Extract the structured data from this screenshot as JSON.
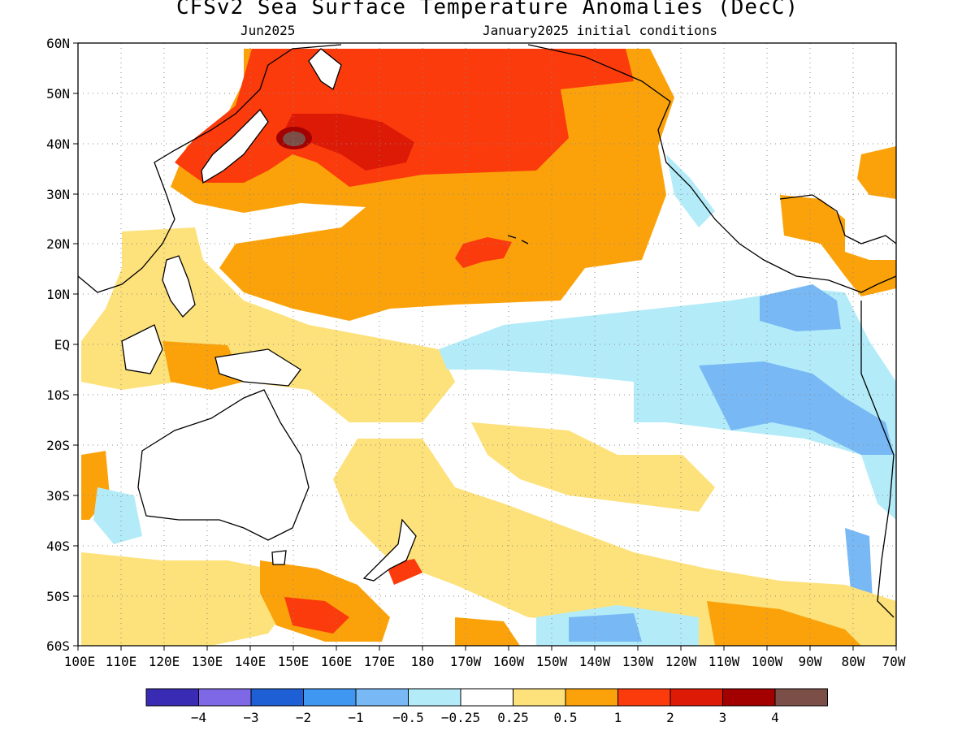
{
  "header": {
    "title": "CFSv2 Sea Surface Temperature Anomalies (DecC)",
    "valid_month": "Jun2025",
    "init": "January2025 initial conditions"
  },
  "axes": {
    "lat_labels": [
      "60N",
      "50N",
      "40N",
      "30N",
      "20N",
      "10N",
      "EQ",
      "10S",
      "20S",
      "30S",
      "40S",
      "50S",
      "60S"
    ],
    "lon_labels": [
      "100E",
      "110E",
      "120E",
      "130E",
      "140E",
      "150E",
      "160E",
      "170E",
      "180",
      "170W",
      "160W",
      "150W",
      "140W",
      "130W",
      "120W",
      "110W",
      "100W",
      "90W",
      "80W",
      "70W"
    ]
  },
  "colorbar": {
    "colors": [
      "#3a2bb5",
      "#7e68e6",
      "#1e5fd6",
      "#3f97f2",
      "#78b8f5",
      "#b3ecf8",
      "#ffffff",
      "#fde17a",
      "#fba20a",
      "#fb3b0c",
      "#dc1a06",
      "#a30000",
      "#7b4f47"
    ],
    "labels": [
      "−4",
      "−3",
      "−2",
      "−1",
      "−0.5",
      "−0.25",
      "0.25",
      "0.5",
      "1",
      "2",
      "3",
      "4"
    ]
  },
  "map_features": {
    "land_outline": "black coastlines",
    "grid": "dotted"
  }
}
